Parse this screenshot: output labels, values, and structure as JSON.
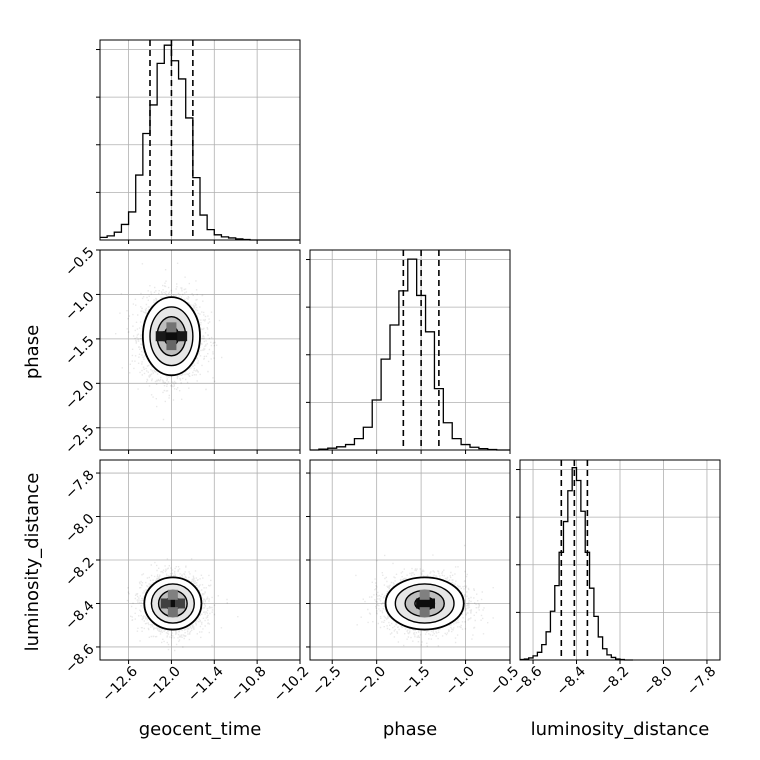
{
  "chart_data": {
    "type": "corner",
    "parameters": [
      {
        "name": "geocent_time",
        "xlabel": "geocent_time",
        "ylabel": "",
        "range": [
          -13.0,
          -10.2
        ],
        "ticks": [
          -12.6,
          -12.0,
          -11.4,
          -10.8,
          -10.2
        ],
        "tick_labels": [
          "−12.6",
          "−12.0",
          "−11.4",
          "−10.8",
          "−10.2"
        ],
        "quantiles": [
          -12.3,
          -12.0,
          -11.7
        ],
        "hist": {
          "bin_edges": [
            -13.0,
            -12.9,
            -12.8,
            -12.7,
            -12.6,
            -12.5,
            -12.4,
            -12.3,
            -12.2,
            -12.1,
            -12.0,
            -11.9,
            -11.8,
            -11.7,
            -11.6,
            -11.5,
            -11.4,
            -11.3,
            -11.2,
            -11.1,
            -11.0,
            -10.9,
            -10.8,
            -10.7,
            -10.6,
            -10.5,
            -10.4,
            -10.3,
            -10.2
          ],
          "counts": [
            0.5,
            0.8,
            1.5,
            3.0,
            5.4,
            12.5,
            20.5,
            26.0,
            34.0,
            37.5,
            34.5,
            31.0,
            23.5,
            12.0,
            4.8,
            2.0,
            1.0,
            0.6,
            0.4,
            0.2,
            0.1,
            0,
            0,
            0,
            0,
            0,
            0,
            0
          ],
          "ymax": 38.5
        }
      },
      {
        "name": "phase",
        "xlabel": "phase",
        "ylabel": "phase",
        "range": [
          -2.75,
          -0.5
        ],
        "ticks": [
          -2.5,
          -2.0,
          -1.5,
          -1.0,
          -0.5
        ],
        "tick_labels": [
          "−2.5",
          "−2.0",
          "−1.5",
          "−1.0",
          "−0.5"
        ],
        "y_ticks": [
          -0.5,
          -1.0,
          -1.5,
          -2.0,
          -2.5
        ],
        "y_tick_labels": [
          "−0.5",
          "−1.0",
          "−1.5",
          "−2.0",
          "−2.5"
        ],
        "quantiles": [
          -1.7,
          -1.5,
          -1.3
        ],
        "hist": {
          "bin_edges": [
            -2.75,
            -2.65,
            -2.55,
            -2.45,
            -2.35,
            -2.25,
            -2.15,
            -2.05,
            -1.95,
            -1.85,
            -1.75,
            -1.65,
            -1.55,
            -1.45,
            -1.35,
            -1.25,
            -1.15,
            -1.05,
            -0.95,
            -0.85,
            -0.75,
            -0.65,
            -0.55,
            -0.5
          ],
          "counts": [
            0,
            0.2,
            0.4,
            0.7,
            1.2,
            2.5,
            5.0,
            11.0,
            20.0,
            27.5,
            35.0,
            42.0,
            34.0,
            26.0,
            13.5,
            6.0,
            2.5,
            1.2,
            0.6,
            0.3,
            0.1,
            0,
            0
          ],
          "ymax": 44
        }
      },
      {
        "name": "luminosity_distance",
        "xlabel": "luminosity_distance",
        "ylabel": "luminosity_distance",
        "range": [
          -8.66,
          -7.74
        ],
        "ticks": [
          -8.6,
          -8.4,
          -8.2,
          -8.0,
          -7.8
        ],
        "tick_labels": [
          "−8.6",
          "−8.4",
          "−8.2",
          "−8.0",
          "−7.8"
        ],
        "y_ticks": [
          -7.8,
          -8.0,
          -8.2,
          -8.4,
          -8.6
        ],
        "y_tick_labels": [
          "−7.8",
          "−8.0",
          "−8.2",
          "−8.4",
          "−8.6"
        ],
        "quantiles": [
          -8.47,
          -8.41,
          -8.35
        ],
        "hist": {
          "bin_edges": [
            -8.66,
            -8.64,
            -8.62,
            -8.6,
            -8.58,
            -8.56,
            -8.54,
            -8.52,
            -8.5,
            -8.48,
            -8.46,
            -8.44,
            -8.42,
            -8.4,
            -8.38,
            -8.36,
            -8.34,
            -8.32,
            -8.3,
            -8.28,
            -8.26,
            -8.24,
            -8.22,
            -8.2,
            -8.18,
            -8.16,
            -8.14
          ],
          "counts": [
            0.1,
            0.2,
            0.4,
            0.8,
            1.5,
            3.0,
            5.5,
            9.5,
            14.5,
            21.0,
            27.0,
            33.0,
            37.5,
            35.0,
            29.0,
            21.0,
            14.0,
            8.5,
            4.5,
            2.2,
            1.0,
            0.5,
            0.2,
            0.1,
            0,
            0
          ],
          "ymax": 39
        }
      }
    ],
    "joint": [
      {
        "x_param": "geocent_time",
        "y_param": "phase",
        "center": [
          -12.0,
          -1.47
        ],
        "sigma": [
          0.2,
          0.22
        ],
        "contour_levels": [
          0.5,
          1.0,
          1.5,
          2.0
        ],
        "density_blocks": [
          [
            -12.05,
            -1.47,
            0.95
          ],
          [
            -11.95,
            -1.47,
            0.95
          ],
          [
            -12.15,
            -1.47,
            0.9
          ],
          [
            -11.85,
            -1.47,
            0.9
          ],
          [
            -12.0,
            -1.57,
            0.6
          ],
          [
            -12.0,
            -1.37,
            0.55
          ]
        ]
      },
      {
        "x_param": "geocent_time",
        "y_param": "luminosity_distance",
        "center": [
          -11.98,
          -8.4
        ],
        "sigma": [
          0.2,
          0.06
        ],
        "contour_levels": [
          0.5,
          1.0,
          1.5,
          2.0
        ],
        "density_blocks": [
          [
            -11.98,
            -8.4,
            0.95
          ],
          [
            -12.08,
            -8.4,
            0.75
          ],
          [
            -11.88,
            -8.4,
            0.75
          ],
          [
            -11.98,
            -8.44,
            0.55
          ],
          [
            -11.98,
            -8.36,
            0.5
          ]
        ]
      },
      {
        "x_param": "phase",
        "y_param": "luminosity_distance",
        "center": [
          -1.46,
          -8.4
        ],
        "sigma": [
          0.22,
          0.06
        ],
        "contour_levels": [
          0.5,
          1.0,
          1.5,
          2.0
        ],
        "density_blocks": [
          [
            -1.5,
            -8.4,
            0.95
          ],
          [
            -1.4,
            -8.4,
            0.95
          ],
          [
            -1.46,
            -8.44,
            0.55
          ],
          [
            -1.46,
            -8.36,
            0.5
          ]
        ]
      }
    ],
    "grid": true
  }
}
